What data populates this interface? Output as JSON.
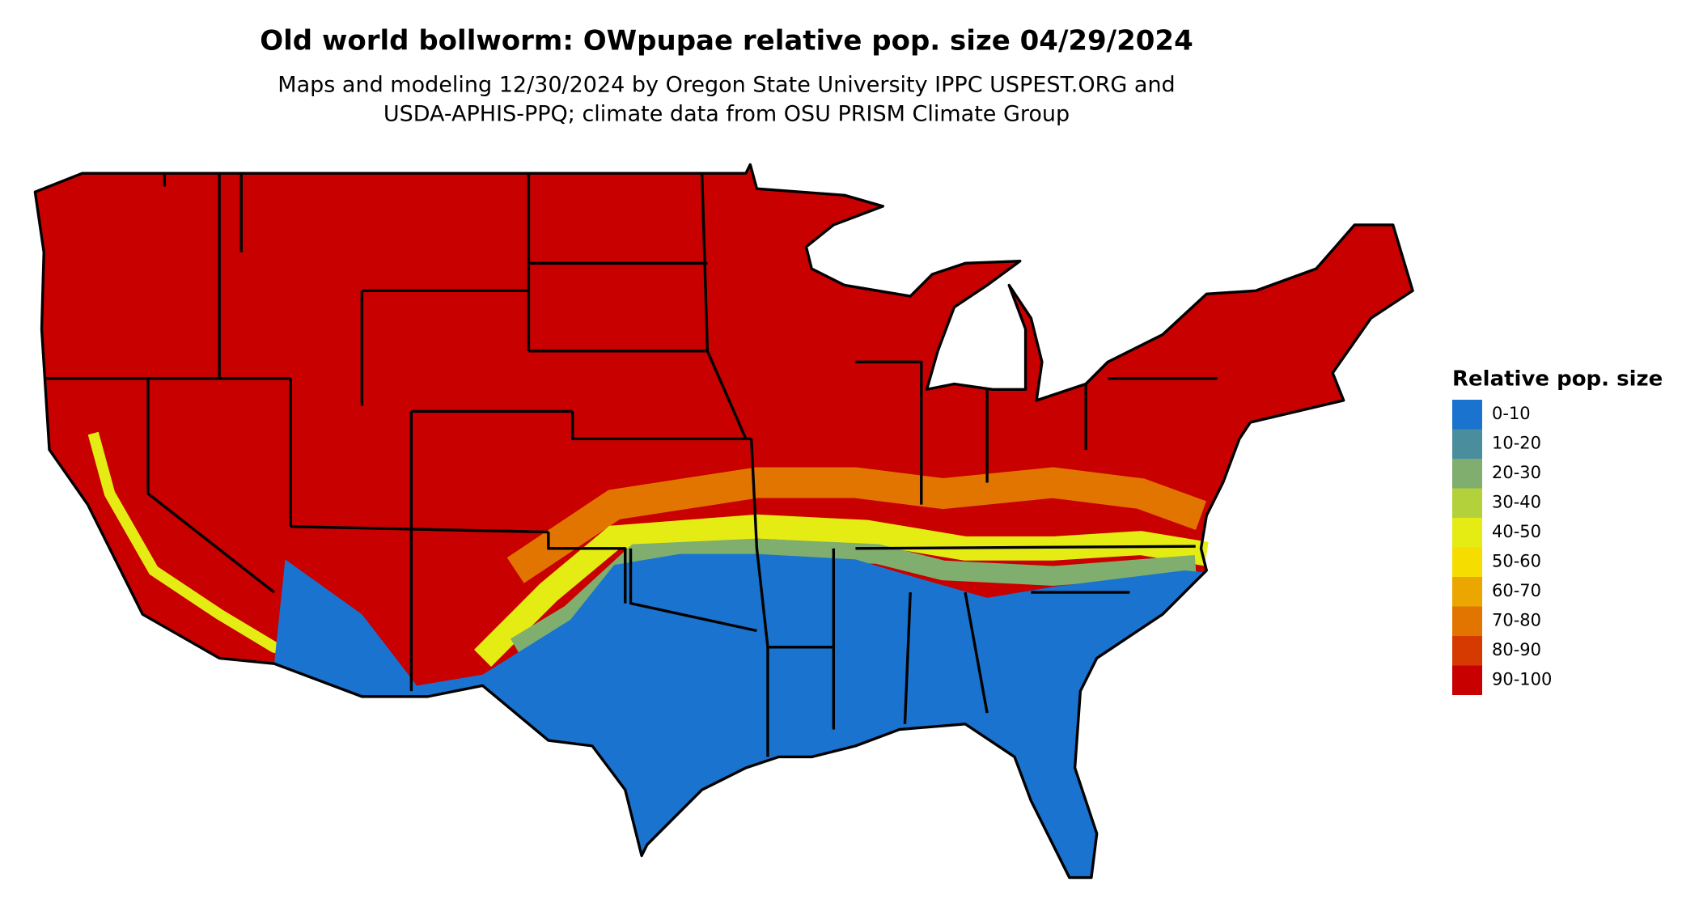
{
  "title": "Old world bollworm: OWpupae relative pop. size 04/29/2024",
  "subtitle": [
    "Maps and modeling 12/30/2024 by Oregon State University IPPC USPEST.ORG and",
    "USDA-APHIS-PPQ; climate data from OSU PRISM Climate Group"
  ],
  "legend": {
    "title": "Relative pop. size",
    "items": [
      {
        "label": "0-10",
        "color": "#1a73cf"
      },
      {
        "label": "10-20",
        "color": "#4a8e9e"
      },
      {
        "label": "20-30",
        "color": "#7fae6e"
      },
      {
        "label": "30-40",
        "color": "#b3d13a"
      },
      {
        "label": "40-50",
        "color": "#e4ec14"
      },
      {
        "label": "50-60",
        "color": "#f5dd00"
      },
      {
        "label": "60-70",
        "color": "#eba600"
      },
      {
        "label": "70-80",
        "color": "#e27500"
      },
      {
        "label": "80-90",
        "color": "#d73a00"
      },
      {
        "label": "90-100",
        "color": "#c80000"
      }
    ]
  }
}
